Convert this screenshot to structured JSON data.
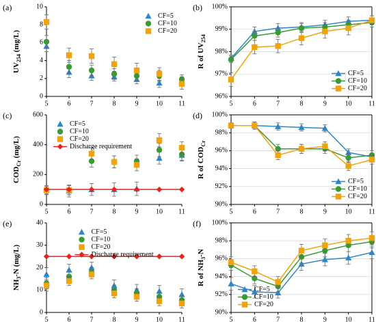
{
  "chart_data": [
    {
      "type": "scatter",
      "panel_label": "(a)",
      "ylabel": [
        "UV",
        "254",
        " (mg/L)"
      ],
      "x": [
        5,
        6,
        7,
        8,
        9,
        10,
        11
      ],
      "xlim": [
        5,
        11
      ],
      "xticks": [
        5,
        6,
        7,
        8,
        9,
        10,
        11
      ],
      "ylim": [
        0,
        10
      ],
      "yticks": [
        0,
        2,
        4,
        6,
        8,
        10
      ],
      "grid": false,
      "legend": "upper right",
      "series": [
        {
          "name": "CF=5",
          "color": "#2e86c8",
          "marker": "triangle",
          "line": false,
          "values": [
            5.6,
            2.7,
            2.3,
            2.2,
            1.9,
            1.5,
            1.7
          ],
          "errors": [
            0.6,
            0.6,
            0.5,
            0.5,
            0.5,
            0.5,
            0.5
          ]
        },
        {
          "name": "CF=10",
          "color": "#3a9a35",
          "marker": "circle",
          "line": false,
          "values": [
            6.1,
            3.3,
            2.9,
            2.5,
            2.3,
            2.3,
            1.9
          ],
          "errors": [
            0.7,
            0.7,
            0.6,
            0.6,
            0.6,
            0.6,
            0.5
          ]
        },
        {
          "name": "CF=20",
          "color": "#f0a30a",
          "marker": "square",
          "line": false,
          "values": [
            8.3,
            4.6,
            4.5,
            3.6,
            2.9,
            2.5,
            1.4
          ],
          "errors": [
            0.8,
            0.8,
            0.8,
            0.8,
            0.8,
            0.7,
            0.6
          ]
        }
      ]
    },
    {
      "type": "line",
      "panel_label": "(b)",
      "ylabel": [
        "R of UV",
        "254"
      ],
      "x": [
        5,
        6,
        7,
        8,
        9,
        10,
        11
      ],
      "xlim": [
        5,
        11
      ],
      "xticks": [
        5,
        6,
        7,
        8,
        9,
        10,
        11
      ],
      "ylim": [
        96,
        100
      ],
      "yticks": [
        {
          "value": 96,
          "label": "96%"
        },
        {
          "value": 97,
          "label": "97%"
        },
        {
          "value": 98,
          "label": "98%"
        },
        {
          "value": 99,
          "label": "99%"
        },
        {
          "value": 100,
          "label": "100%"
        }
      ],
      "grid": true,
      "legend": "lower right",
      "series": [
        {
          "name": "CF=5",
          "color": "#2e86c8",
          "marker": "triangle",
          "line": true,
          "values": [
            97.7,
            98.9,
            99.05,
            99.1,
            99.2,
            99.35,
            99.4
          ],
          "errors": [
            0.15,
            0.2,
            0.2,
            0.2,
            0.2,
            0.2,
            0.2
          ]
        },
        {
          "name": "CF=10",
          "color": "#3a9a35",
          "marker": "circle",
          "line": true,
          "values": [
            97.65,
            98.7,
            98.85,
            99.05,
            99.1,
            99.2,
            99.3
          ],
          "errors": [
            0.15,
            0.2,
            0.2,
            0.2,
            0.2,
            0.2,
            0.2
          ]
        },
        {
          "name": "CF=20",
          "color": "#f0a30a",
          "marker": "square",
          "line": true,
          "values": [
            96.75,
            98.2,
            98.25,
            98.6,
            98.9,
            99.05,
            99.4
          ],
          "errors": [
            0.3,
            0.3,
            0.3,
            0.3,
            0.3,
            0.3,
            0.2
          ]
        }
      ]
    },
    {
      "type": "scatter",
      "panel_label": "(c)",
      "ylabel": [
        "COD",
        "Cr",
        " (mg/L)"
      ],
      "x": [
        5,
        6,
        7,
        8,
        9,
        10,
        11
      ],
      "xlim": [
        5,
        11
      ],
      "xticks": [
        5,
        6,
        7,
        8,
        9,
        10,
        11
      ],
      "ylim": [
        0,
        600
      ],
      "yticks": [
        0,
        200,
        400,
        600
      ],
      "grid": false,
      "legend": "upper left",
      "series": [
        {
          "name": "CF=5",
          "color": "#2e86c8",
          "marker": "triangle",
          "line": false,
          "values": [
            95,
            90,
            100,
            100,
            105,
            310,
            330
          ],
          "errors": [
            30,
            40,
            40,
            45,
            45,
            40,
            40
          ]
        },
        {
          "name": "CF=10",
          "color": "#3a9a35",
          "marker": "circle",
          "line": false,
          "values": [
            95,
            95,
            290,
            285,
            290,
            365,
            335
          ],
          "errors": [
            25,
            30,
            40,
            40,
            40,
            45,
            40
          ]
        },
        {
          "name": "CF=20",
          "color": "#f0a30a",
          "marker": "square",
          "line": false,
          "values": [
            95,
            95,
            340,
            285,
            265,
            430,
            380
          ],
          "errors": [
            25,
            30,
            40,
            40,
            40,
            45,
            40
          ]
        },
        {
          "name": "Discharge requirement",
          "color": "#e8221c",
          "marker": "diamond",
          "line": true,
          "values": [
            100,
            100,
            100,
            100,
            100,
            100,
            100
          ]
        }
      ]
    },
    {
      "type": "line",
      "panel_label": "(d)",
      "ylabel": [
        "R of COD",
        "Cr"
      ],
      "x": [
        5,
        6,
        7,
        8,
        9,
        10,
        11
      ],
      "xlim": [
        5,
        11
      ],
      "xticks": [
        5,
        6,
        7,
        8,
        9,
        10,
        11
      ],
      "ylim": [
        90,
        100
      ],
      "yticks": [
        {
          "value": 90,
          "label": "90%"
        },
        {
          "value": 92,
          "label": "92%"
        },
        {
          "value": 94,
          "label": "94%"
        },
        {
          "value": 96,
          "label": "96%"
        },
        {
          "value": 98,
          "label": "98%"
        },
        {
          "value": 100,
          "label": "100%"
        }
      ],
      "grid": true,
      "legend": "lower right",
      "series": [
        {
          "name": "CF=5",
          "color": "#2e86c8",
          "marker": "triangle",
          "line": true,
          "values": [
            98.8,
            98.8,
            98.7,
            98.6,
            98.5,
            95.8,
            95.3
          ],
          "errors": [
            0.3,
            0.4,
            0.4,
            0.4,
            0.4,
            0.4,
            0.4
          ]
        },
        {
          "name": "CF=10",
          "color": "#3a9a35",
          "marker": "circle",
          "line": true,
          "values": [
            98.8,
            98.8,
            96.2,
            96.2,
            96.2,
            95.2,
            95.5
          ],
          "errors": [
            0.3,
            0.4,
            0.5,
            0.5,
            0.5,
            0.5,
            0.5
          ]
        },
        {
          "name": "CF=20",
          "color": "#f0a30a",
          "marker": "square",
          "line": true,
          "values": [
            98.8,
            98.8,
            95.5,
            96.2,
            96.5,
            94.3,
            95.0
          ],
          "errors": [
            0.3,
            0.4,
            0.5,
            0.5,
            0.5,
            0.5,
            0.5
          ]
        }
      ]
    },
    {
      "type": "scatter",
      "panel_label": "(e)",
      "ylabel": [
        "NH",
        "3",
        "-N (mg/L)"
      ],
      "x": [
        5,
        6,
        7,
        8,
        9,
        10,
        11
      ],
      "xlim": [
        5,
        11
      ],
      "xticks": [
        5,
        6,
        7,
        8,
        9,
        10,
        11
      ],
      "ylim": [
        0,
        40
      ],
      "yticks": [
        0,
        10,
        20,
        30,
        40
      ],
      "grid": false,
      "legend": "upper center",
      "series": [
        {
          "name": "CF=5",
          "color": "#2e86c8",
          "marker": "triangle",
          "line": false,
          "values": [
            17,
            19,
            20,
            12,
            10,
            9.5,
            8
          ],
          "errors": [
            3,
            2.5,
            2.5,
            2.5,
            2.5,
            2.5,
            2.5
          ]
        },
        {
          "name": "CF=10",
          "color": "#3a9a35",
          "marker": "circle",
          "line": false,
          "values": [
            13,
            16,
            18,
            10,
            8.5,
            7,
            5.5
          ],
          "errors": [
            2.5,
            2,
            2,
            2,
            2,
            2,
            2
          ]
        },
        {
          "name": "CF=20",
          "color": "#f0a30a",
          "marker": "square",
          "line": false,
          "values": [
            12,
            14,
            17,
            8.5,
            7,
            5,
            4
          ],
          "errors": [
            2.5,
            2,
            2,
            2,
            2,
            2,
            2
          ]
        },
        {
          "name": "Discharge requirement",
          "color": "#e8221c",
          "marker": "diamond",
          "line": true,
          "values": [
            25,
            25,
            25,
            25,
            25,
            25,
            25
          ]
        }
      ]
    },
    {
      "type": "line",
      "panel_label": "(f)",
      "ylabel": [
        "R of NH",
        "3",
        "-N"
      ],
      "x": [
        5,
        6,
        7,
        8,
        9,
        10,
        11
      ],
      "xlim": [
        5,
        11
      ],
      "xticks": [
        5,
        6,
        7,
        8,
        9,
        10,
        11
      ],
      "ylim": [
        90,
        100
      ],
      "yticks": [
        {
          "value": 90,
          "label": "90%"
        },
        {
          "value": 92,
          "label": "92%"
        },
        {
          "value": 94,
          "label": "94%"
        },
        {
          "value": 96,
          "label": "96%"
        },
        {
          "value": 98,
          "label": "98%"
        },
        {
          "value": 100,
          "label": "100%"
        }
      ],
      "grid": true,
      "legend": "lower left",
      "series": [
        {
          "name": "CF=5",
          "color": "#2e86c8",
          "marker": "triangle",
          "line": true,
          "values": [
            93.2,
            92.3,
            92.2,
            95.4,
            95.9,
            96.1,
            96.7
          ],
          "errors": [
            0.7,
            0.7,
            0.6,
            0.7,
            0.7,
            0.7,
            0.7
          ]
        },
        {
          "name": "CF=10",
          "color": "#3a9a35",
          "marker": "circle",
          "line": true,
          "values": [
            95.3,
            93.8,
            92.9,
            96.2,
            96.9,
            97.5,
            97.9
          ],
          "errors": [
            0.6,
            0.6,
            0.6,
            0.7,
            0.7,
            0.7,
            0.7
          ]
        },
        {
          "name": "CF=20",
          "color": "#f0a30a",
          "marker": "square",
          "line": true,
          "values": [
            95.6,
            94.6,
            93.4,
            96.9,
            97.5,
            98.0,
            98.3
          ],
          "errors": [
            0.6,
            0.6,
            0.6,
            0.7,
            0.7,
            0.7,
            0.7
          ]
        }
      ]
    }
  ]
}
